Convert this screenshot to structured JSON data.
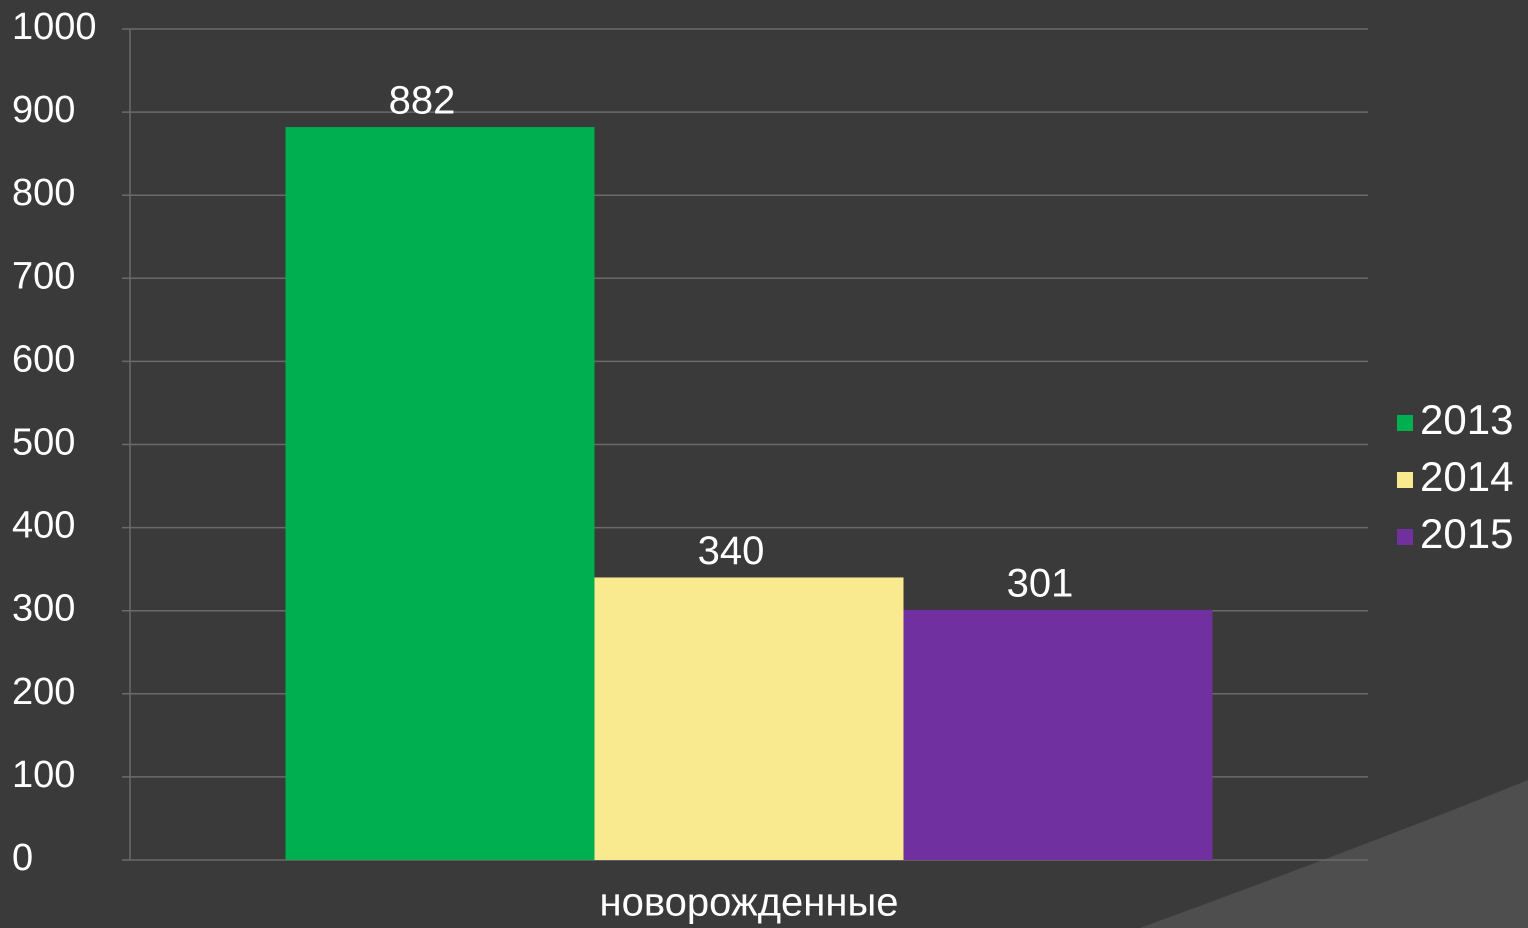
{
  "chart_data": {
    "type": "bar",
    "categories": [
      "новорожденные"
    ],
    "series": [
      {
        "name": "2013",
        "color": "#00b050",
        "values": [
          882
        ]
      },
      {
        "name": "2014",
        "color": "#f9e98f",
        "values": [
          340
        ]
      },
      {
        "name": "2015",
        "color": "#7030a0",
        "values": [
          301
        ]
      }
    ],
    "ylim": [
      0,
      1000
    ],
    "yticks": [
      0,
      100,
      200,
      300,
      400,
      500,
      600,
      700,
      800,
      900,
      1000
    ],
    "grid": true,
    "legend": "right"
  }
}
